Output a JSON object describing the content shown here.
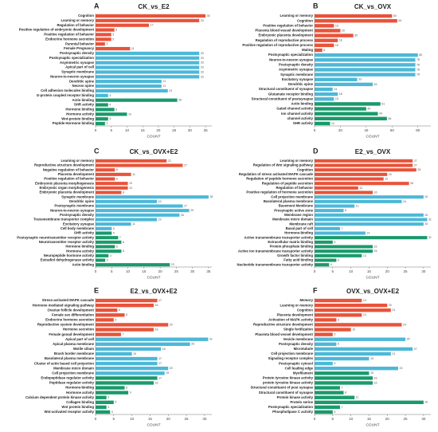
{
  "chart_data": [
    {
      "type": "bar",
      "panel": "A",
      "title": "CK_vs_E2",
      "xlabel": "COUNT",
      "xlim": [
        0,
        37
      ],
      "xticks": [
        0,
        5,
        10,
        15,
        20,
        25,
        30,
        35
      ],
      "categories": [
        "Cognition",
        "Learning or memory",
        "Regulation of behavior",
        "Positive regulation of embryonic development",
        "Positive regulation of behavior",
        "Endocrine hormone secretion",
        "Parental behavior",
        "Female Pregnancy",
        "Postsynaptic density",
        "Postsynaptic specialization",
        "Asymmetric synapse",
        "Apical part of cell",
        "Synaptic membrane",
        "Neuron-to-neuron synapse",
        "Dendritic spine",
        "Neuron spine",
        "Cell adhesion molecules binding",
        "G-protein coupled receptor binding",
        "Actin binding",
        "SHR activity",
        "Hormone binding",
        "Hormone activity",
        "Wnt-protein binding",
        "Peptide Hormone binding"
      ],
      "values": [
        35,
        33,
        17,
        6,
        5,
        5,
        3,
        11,
        33,
        33,
        33,
        33,
        33,
        33,
        21,
        21,
        23,
        4,
        26,
        4,
        6,
        10,
        4,
        3
      ],
      "colors": [
        "#e8533a",
        "#e8533a",
        "#e8533a",
        "#e8533a",
        "#e8533a",
        "#e8533a",
        "#e8533a",
        "#e8533a",
        "#4db8d8",
        "#4db8d8",
        "#4db8d8",
        "#4db8d8",
        "#4db8d8",
        "#4db8d8",
        "#4db8d8",
        "#4db8d8",
        "#4db8d8",
        "#4db8d8",
        "#1a9a6c",
        "#1a9a6c",
        "#1a9a6c",
        "#1a9a6c",
        "#1a9a6c",
        "#1a9a6c"
      ]
    },
    {
      "type": "bar",
      "panel": "B",
      "title": "CK_vs_OVX",
      "xlabel": "COUNT",
      "xlim": [
        0,
        90
      ],
      "xticks": [
        0,
        20,
        40,
        60,
        80
      ],
      "categories": [
        "Learning or memory",
        "Cognition",
        "Positive regulation of behavior",
        "Placenta blood vessel development",
        "Embryonic placenta development",
        "Regulation of reproductive process",
        "Positive regulation of reproductive process",
        "Mating",
        "Postsynaptic specialization",
        "Neuron-to-neuron synapse",
        "Postsynaptic density",
        "Asymmetric synapse",
        "Synaptic membrane",
        "Excitatory synapse",
        "Dendritic spine",
        "Structural constituent of synapse",
        "Glutamate receptor binding",
        "Structural constituent of postsynapse",
        "Actin binding",
        "Gated channel activity",
        "Ion channel activity",
        "channel activity",
        "SHR activity"
      ],
      "values": [
        60,
        64,
        15,
        20,
        30,
        18,
        15,
        6,
        80,
        78,
        78,
        78,
        78,
        33,
        45,
        14,
        18,
        15,
        51,
        40,
        49,
        56,
        12
      ],
      "colors": [
        "#e8533a",
        "#e8533a",
        "#e8533a",
        "#e8533a",
        "#e8533a",
        "#e8533a",
        "#e8533a",
        "#e8533a",
        "#4db8d8",
        "#4db8d8",
        "#4db8d8",
        "#4db8d8",
        "#4db8d8",
        "#4db8d8",
        "#4db8d8",
        "#4db8d8",
        "#4db8d8",
        "#4db8d8",
        "#1a9a6c",
        "#1a9a6c",
        "#1a9a6c",
        "#1a9a6c",
        "#1a9a6c"
      ]
    },
    {
      "type": "bar",
      "panel": "C",
      "title": "CK_vs_OVX+E2",
      "xlabel": "COUNT",
      "xlim": [
        0,
        36
      ],
      "xticks": [
        0,
        5,
        10,
        15,
        20,
        25,
        30,
        35
      ],
      "categories": [
        "Learning or memory",
        "Reproductive structure development",
        "Negative regulation of behavior",
        "Placenta development",
        "Positive regulation of behavior",
        "Embryonic placenta morphogenesis",
        "Embryonic organ morphogenesis",
        "Embryonic placenta development",
        "Synaptic membrane",
        "Dendritic spine",
        "Postsynaptic membrane",
        "Neuron-to-neuron synapse",
        "Postsynaptic density",
        "Transmembrane transporter complex",
        "Excitatory synapse",
        "Cell body membrane",
        "SHR activity",
        "Postsynaptic neurotransmitter receptor activity",
        "Neurotransmitter receptor activity",
        "Hormone binding",
        "Hormone activity",
        "Neuropeptide hormone activity",
        "Estradiol dehydrogenase activity",
        "Actin binding"
      ],
      "values": [
        22,
        27,
        6,
        11,
        6,
        10,
        10,
        8,
        35,
        19,
        27,
        29,
        26,
        19,
        11,
        5,
        5,
        7,
        8,
        6,
        8,
        4,
        3,
        23
      ],
      "colors": [
        "#e8533a",
        "#e8533a",
        "#e8533a",
        "#e8533a",
        "#e8533a",
        "#e8533a",
        "#e8533a",
        "#e8533a",
        "#4db8d8",
        "#4db8d8",
        "#4db8d8",
        "#4db8d8",
        "#4db8d8",
        "#4db8d8",
        "#4db8d8",
        "#4db8d8",
        "#1a9a6c",
        "#1a9a6c",
        "#1a9a6c",
        "#1a9a6c",
        "#1a9a6c",
        "#1a9a6c",
        "#1a9a6c",
        "#1a9a6c"
      ]
    },
    {
      "type": "bar",
      "panel": "D",
      "title": "E2_vs_OVX",
      "xlabel": "COUNT",
      "xlim": [
        0,
        32
      ],
      "xticks": [
        0,
        5,
        10,
        15,
        20,
        25,
        30
      ],
      "categories": [
        "Learning or memory",
        "Regulation of Wnt signaling pathway",
        "Cognition",
        "Regulation of stress activated MAPK cascade",
        "Regulation of peptide hormone secretion",
        "Regulation of peptide secretion",
        "Regulation of behavior",
        "Positive regulation of hormone secretion",
        "Cell projection membrane",
        "Basolateral plasma membrane",
        "Basement Membrane",
        "Presynaptic active zone",
        "Membrane region",
        "Membrane micro domain",
        "Membrane raft",
        "Basal part of cell",
        "Hormone-binding",
        "Active transmembrane transporter activity",
        "Extracellular matrix binding",
        "Protein phosphate binding",
        "Active ion transmembrane transporter activity",
        "Growth factor binding",
        "Fatty acid binding",
        "Nucleotide transmembrane transporter activity"
      ],
      "values": [
        27,
        27,
        28,
        20,
        19,
        26,
        12,
        16,
        30,
        24,
        11,
        8,
        30,
        31,
        30,
        7,
        14,
        31,
        5,
        16,
        16,
        13,
        6,
        4
      ],
      "colors": [
        "#e8533a",
        "#e8533a",
        "#e8533a",
        "#e8533a",
        "#e8533a",
        "#e8533a",
        "#e8533a",
        "#e8533a",
        "#4db8d8",
        "#4db8d8",
        "#4db8d8",
        "#4db8d8",
        "#4db8d8",
        "#4db8d8",
        "#4db8d8",
        "#4db8d8",
        "#4db8d8",
        "#1a9a6c",
        "#1a9a6c",
        "#1a9a6c",
        "#1a9a6c",
        "#1a9a6c",
        "#1a9a6c",
        "#1a9a6c"
      ]
    },
    {
      "type": "bar",
      "panel": "E",
      "title": "E2_vs_OVX+E2",
      "xlabel": "COUNT",
      "xlim": [
        0,
        32
      ],
      "xticks": [
        0,
        5,
        10,
        15,
        20,
        25,
        30
      ],
      "categories": [
        "Stress-activated MAPK cascade",
        "Hormone mediated signaling pathway",
        "Ovarian follicle development",
        "Female sex differentiation",
        "Endocrine hormone secretion",
        "Reproductive system development",
        "Hormone secretion",
        "Female gonad development",
        "Apical part of cell",
        "Apical plasma membrane",
        "Motile cilium",
        "Brush border membrane",
        "Basolateral plasma membrane",
        "Cluster of actin based cell projection",
        "Membrane micro domain",
        "Cell projection membrane",
        "Endopeptidase regulator activity",
        "Peptidase regulator activity",
        "Hormone-binding",
        "Hormone activity",
        "Calcium dependent protein kinase activity",
        "Collagen binding",
        "Wnt protein binding",
        "Wnt-activated receptor activity"
      ],
      "values": [
        17,
        16,
        6,
        8,
        5,
        20,
        16,
        7,
        31,
        26,
        18,
        10,
        17,
        17,
        20,
        19,
        17,
        16,
        8,
        9,
        3,
        5,
        3,
        4
      ],
      "colors": [
        "#e8533a",
        "#e8533a",
        "#e8533a",
        "#e8533a",
        "#e8533a",
        "#e8533a",
        "#e8533a",
        "#e8533a",
        "#4db8d8",
        "#4db8d8",
        "#4db8d8",
        "#4db8d8",
        "#4db8d8",
        "#4db8d8",
        "#4db8d8",
        "#4db8d8",
        "#1a9a6c",
        "#1a9a6c",
        "#1a9a6c",
        "#1a9a6c",
        "#1a9a6c",
        "#1a9a6c",
        "#1a9a6c",
        "#1a9a6c"
      ]
    },
    {
      "type": "bar",
      "panel": "F",
      "title": "OVX_vs_OVX+E2",
      "xlabel": "COUNT",
      "xlim": [
        0,
        32
      ],
      "xticks": [
        0,
        5,
        10,
        15,
        20,
        25,
        30
      ],
      "categories": [
        "Memory",
        "Learning or memory",
        "Cognition",
        "Placenta development",
        "Activation of MAPK activity",
        "Reproductive structure development",
        "Single fertilization",
        "Placenta blood vessel development",
        "Vesicle membrane",
        "Postsynaptic density",
        "Microtubule",
        "Cell projection membrane",
        "Signaling receptor complex",
        "Postsynaptic cytosol",
        "Cell leading edge",
        "Myofilament",
        "Protein tyrosine kinase activity",
        "protein tyrosine kinase activity",
        "Structural constituent of post synapse",
        "Structural constituent of synapse",
        "Protein kinase activity",
        "Protein serine",
        "Postsynaptic specialization",
        "Phospholipase C activity"
      ],
      "values": [
        13,
        20,
        21,
        13,
        6,
        24,
        10,
        5,
        25,
        6,
        27,
        21,
        15,
        5,
        23,
        15,
        16,
        16,
        7,
        8,
        11,
        30,
        7,
        5
      ],
      "colors": [
        "#e8533a",
        "#e8533a",
        "#e8533a",
        "#e8533a",
        "#e8533a",
        "#e8533a",
        "#e8533a",
        "#e8533a",
        "#4db8d8",
        "#4db8d8",
        "#4db8d8",
        "#4db8d8",
        "#4db8d8",
        "#4db8d8",
        "#4db8d8",
        "#1a9a6c",
        "#1a9a6c",
        "#1a9a6c",
        "#1a9a6c",
        "#1a9a6c",
        "#1a9a6c",
        "#1a9a6c",
        "#1a9a6c",
        "#1a9a6c"
      ]
    }
  ]
}
